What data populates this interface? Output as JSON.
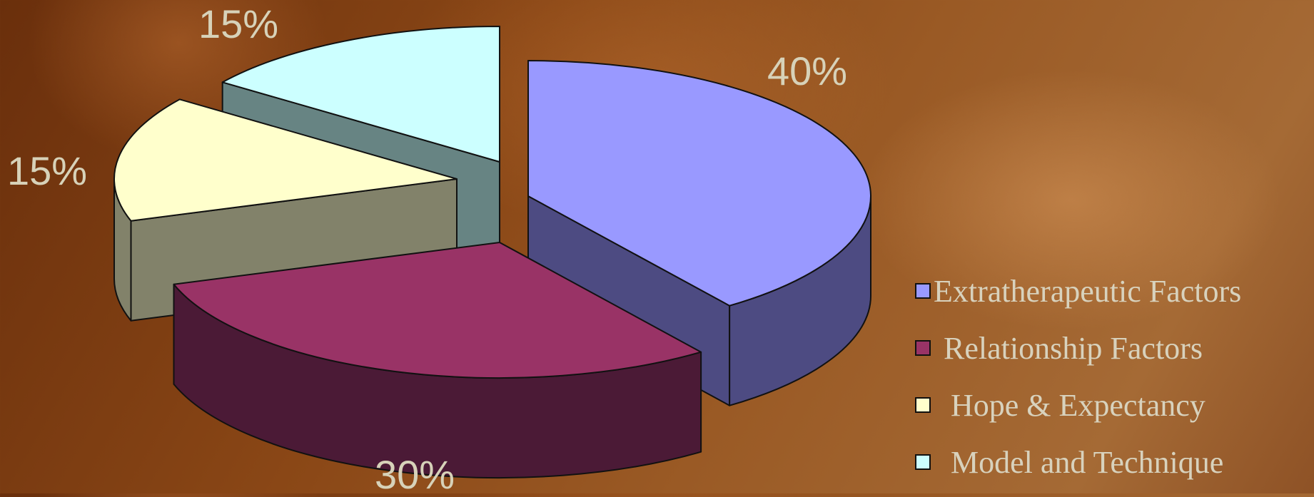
{
  "chart_data": {
    "type": "pie",
    "style": "3d-exploded",
    "legend_position": "right",
    "slices": [
      {
        "label": "Extratherapeutic Factors",
        "value": 40,
        "value_label": "40%",
        "top_color": "#9999ff",
        "side_color": "#4d4b82"
      },
      {
        "label": "Relationship Factors",
        "value": 30,
        "value_label": "30%",
        "top_color": "#993366",
        "side_color": "#4b1a36"
      },
      {
        "label": "Hope & Expectancy",
        "value": 15,
        "value_label": "15%",
        "top_color": "#ffffcc",
        "side_color": "#82826a"
      },
      {
        "label": "Model and Technique",
        "value": 15,
        "value_label": "15%",
        "top_color": "#ccffff",
        "side_color": "#678483"
      }
    ]
  }
}
